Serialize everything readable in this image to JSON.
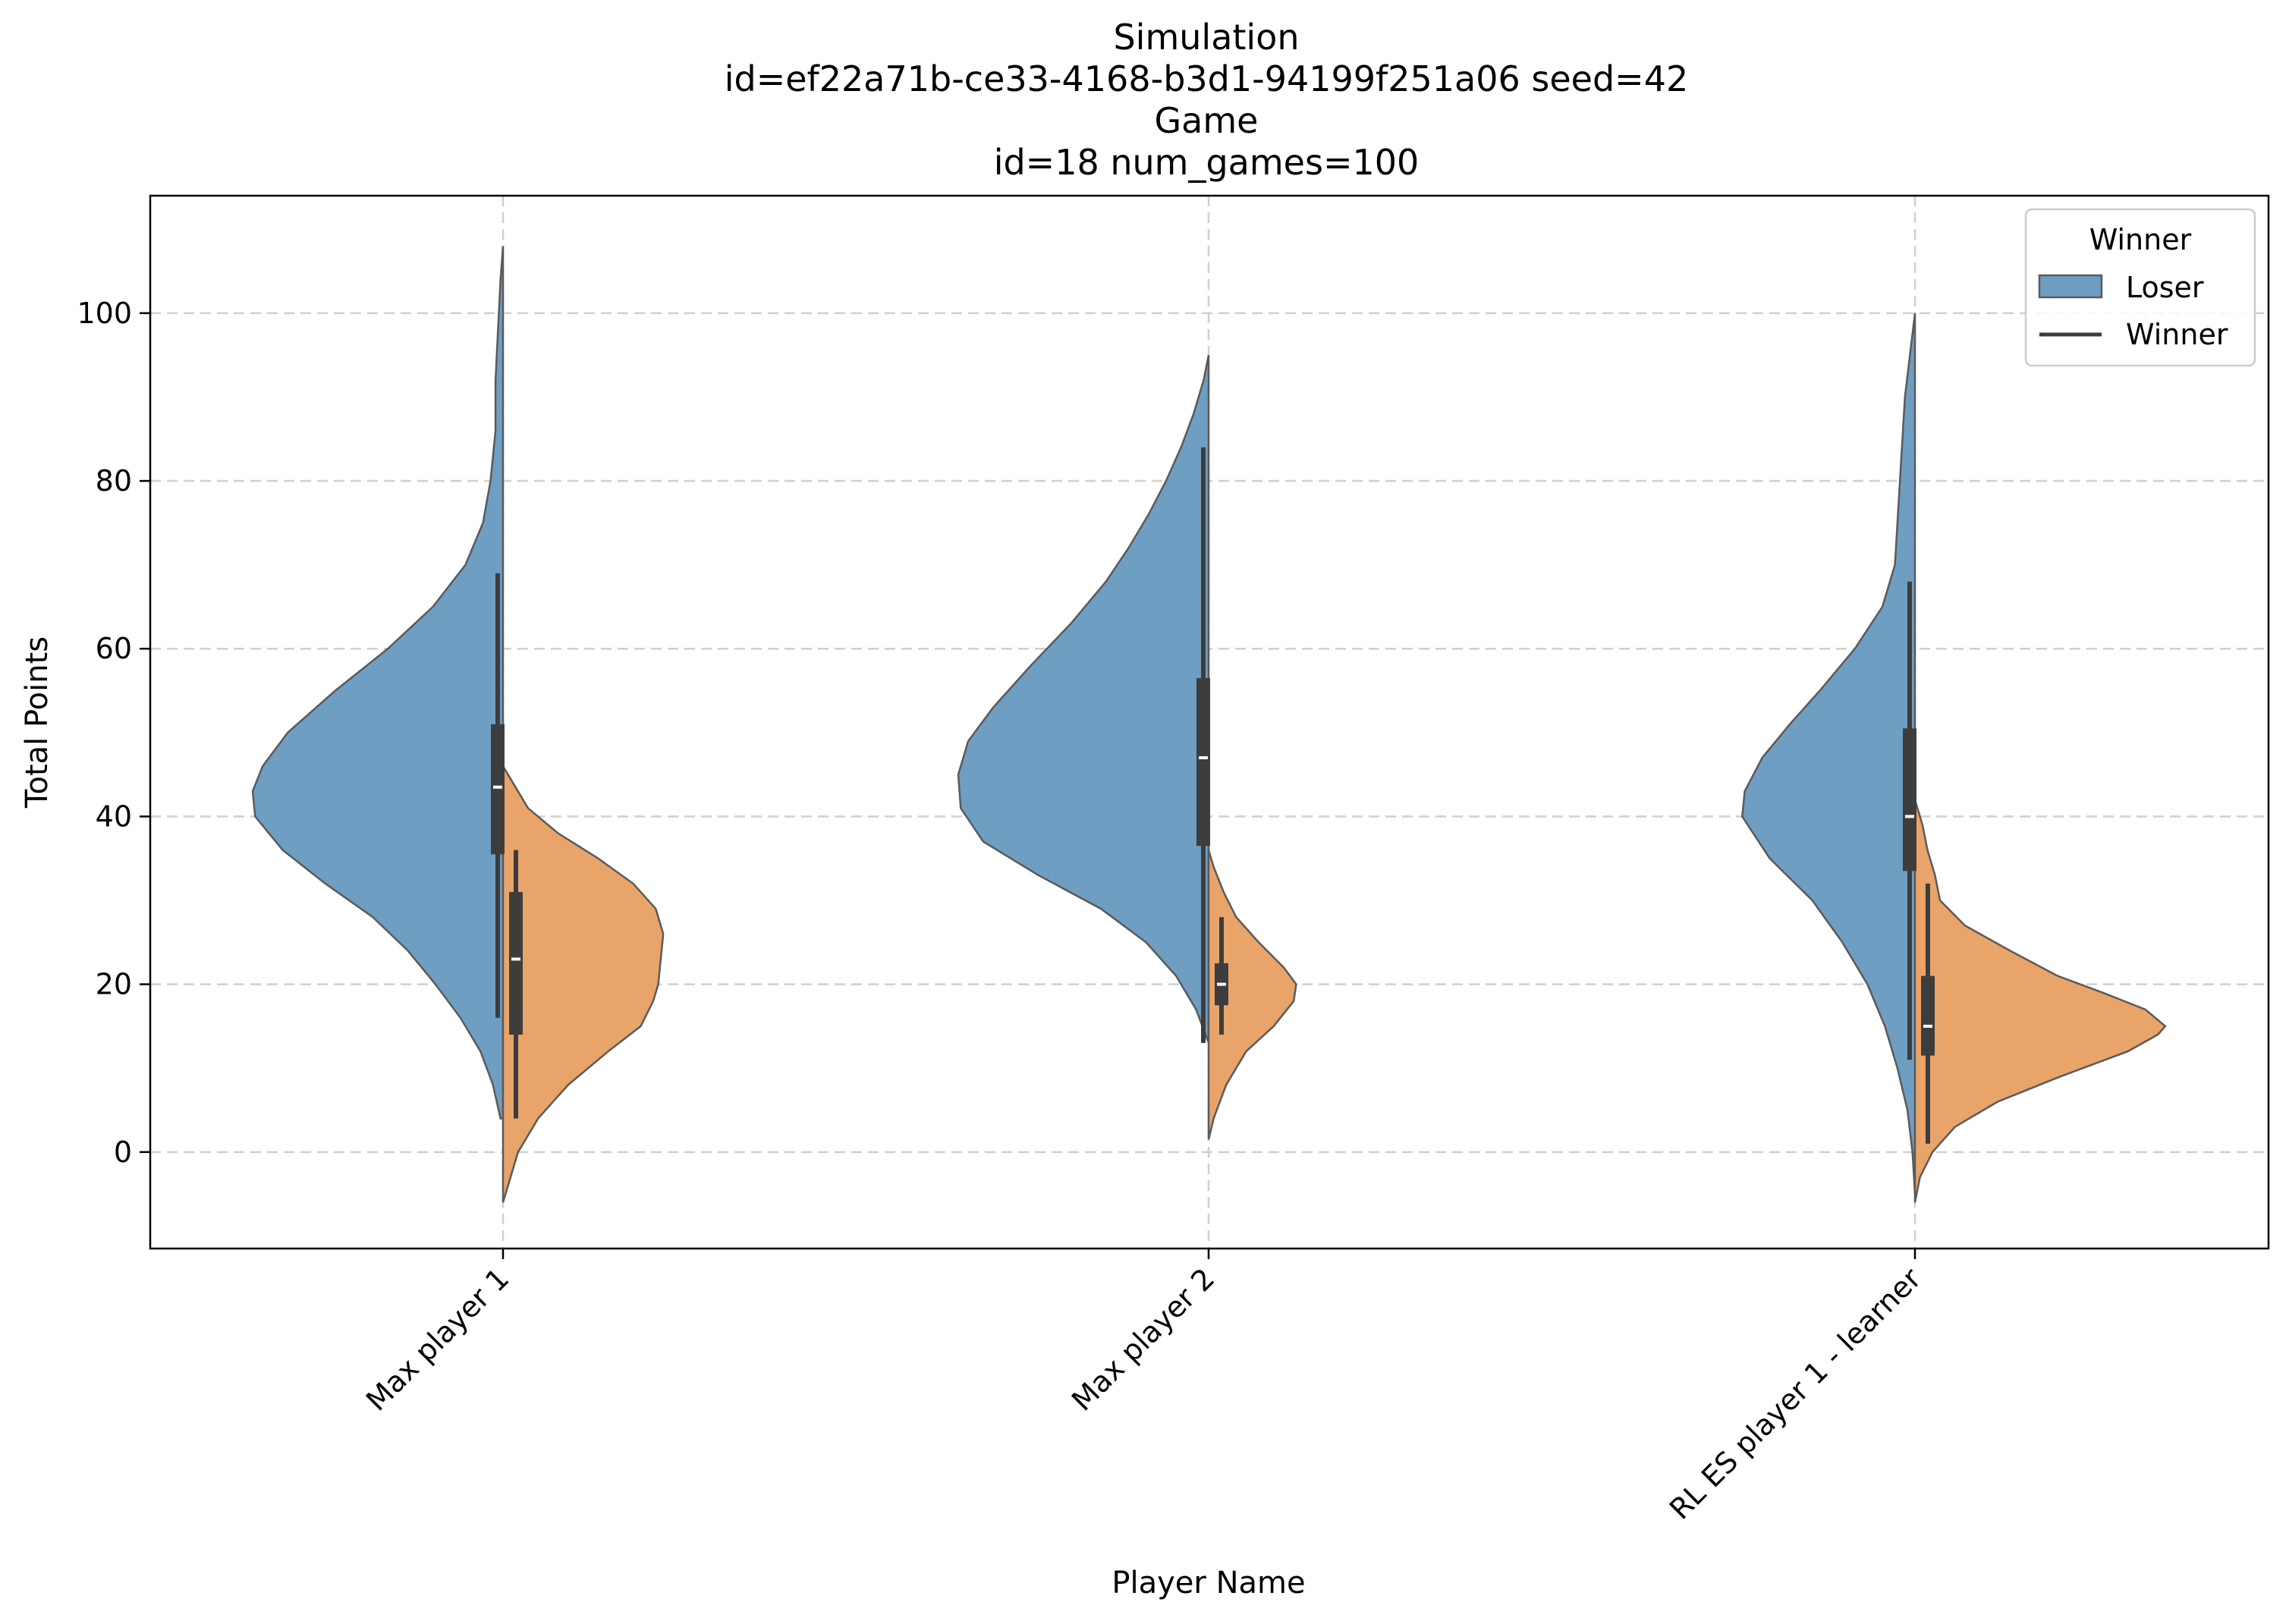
{
  "chart_data": {
    "type": "violin",
    "title_lines": [
      "Simulation",
      "id=ef22a71b-ce33-4168-b3d1-94199f251a06 seed=42",
      "Game",
      "id=18 num_games=100"
    ],
    "xlabel": "Player Name",
    "ylabel": "Total Points",
    "ylim": [
      -11.5,
      114
    ],
    "yticks": [
      0,
      20,
      40,
      60,
      80,
      100
    ],
    "grid": true,
    "categories": [
      "Max player 1",
      "Max player 2",
      "RL ES player 1 - learner"
    ],
    "legend": {
      "title": "Winner",
      "placement": "top-right",
      "entries": [
        "Loser",
        "Winner"
      ]
    },
    "colors": {
      "Loser": "#6f9ec3",
      "Winner": "#e9a46a",
      "outline": "#5a5a5a",
      "box": "#3d3d3d",
      "median": "#ffffff"
    },
    "series": [
      {
        "name": "Loser",
        "side": "left",
        "violins": [
          {
            "category": "Max player 1",
            "density": [
              [
                4,
                0.01
              ],
              [
                8,
                0.04
              ],
              [
                12,
                0.09
              ],
              [
                16,
                0.17
              ],
              [
                20,
                0.27
              ],
              [
                24,
                0.38
              ],
              [
                28,
                0.52
              ],
              [
                32,
                0.71
              ],
              [
                36,
                0.88
              ],
              [
                40,
                0.99
              ],
              [
                43,
                1.0
              ],
              [
                46,
                0.96
              ],
              [
                50,
                0.86
              ],
              [
                55,
                0.67
              ],
              [
                60,
                0.46
              ],
              [
                65,
                0.28
              ],
              [
                70,
                0.15
              ],
              [
                75,
                0.08
              ],
              [
                80,
                0.05
              ],
              [
                86,
                0.03
              ],
              [
                92,
                0.03
              ],
              [
                98,
                0.02
              ],
              [
                104,
                0.01
              ],
              [
                108,
                0.0
              ]
            ],
            "box": {
              "q1": 35.5,
              "median": 43.5,
              "q3": 51,
              "whisker_low": 16,
              "whisker_high": 69
            }
          },
          {
            "category": "Max player 2",
            "density": [
              [
                13,
                0.0
              ],
              [
                17,
                0.05
              ],
              [
                21,
                0.13
              ],
              [
                25,
                0.25
              ],
              [
                29,
                0.43
              ],
              [
                33,
                0.68
              ],
              [
                37,
                0.9
              ],
              [
                41,
                0.99
              ],
              [
                45,
                1.0
              ],
              [
                49,
                0.96
              ],
              [
                53,
                0.86
              ],
              [
                58,
                0.71
              ],
              [
                63,
                0.55
              ],
              [
                68,
                0.41
              ],
              [
                72,
                0.32
              ],
              [
                76,
                0.24
              ],
              [
                80,
                0.17
              ],
              [
                84,
                0.11
              ],
              [
                88,
                0.06
              ],
              [
                92,
                0.02
              ],
              [
                95,
                0.0
              ]
            ],
            "box": {
              "q1": 36.5,
              "median": 47,
              "q3": 56.5,
              "whisker_low": 13,
              "whisker_high": 84
            }
          },
          {
            "category": "RL ES player 1 - learner",
            "density": [
              [
                -5,
                0.0
              ],
              [
                0,
                0.01
              ],
              [
                5,
                0.03
              ],
              [
                10,
                0.07
              ],
              [
                15,
                0.12
              ],
              [
                20,
                0.19
              ],
              [
                25,
                0.29
              ],
              [
                30,
                0.41
              ],
              [
                35,
                0.58
              ],
              [
                40,
                0.69
              ],
              [
                43,
                0.68
              ],
              [
                47,
                0.61
              ],
              [
                51,
                0.5
              ],
              [
                55,
                0.38
              ],
              [
                60,
                0.24
              ],
              [
                65,
                0.13
              ],
              [
                70,
                0.08
              ],
              [
                75,
                0.07
              ],
              [
                80,
                0.06
              ],
              [
                85,
                0.05
              ],
              [
                90,
                0.04
              ],
              [
                95,
                0.02
              ],
              [
                100,
                0.0
              ]
            ],
            "box": {
              "q1": 33.5,
              "median": 40,
              "q3": 50.5,
              "whisker_low": 11,
              "whisker_high": 68
            }
          }
        ]
      },
      {
        "name": "Winner",
        "side": "right",
        "violins": [
          {
            "category": "Max player 1",
            "density": [
              [
                -6,
                0.0
              ],
              [
                -3,
                0.03
              ],
              [
                0,
                0.06
              ],
              [
                4,
                0.14
              ],
              [
                8,
                0.26
              ],
              [
                12,
                0.42
              ],
              [
                15,
                0.55
              ],
              [
                18,
                0.6
              ],
              [
                20,
                0.62
              ],
              [
                23,
                0.63
              ],
              [
                26,
                0.64
              ],
              [
                29,
                0.61
              ],
              [
                32,
                0.52
              ],
              [
                35,
                0.38
              ],
              [
                38,
                0.22
              ],
              [
                41,
                0.1
              ],
              [
                44,
                0.04
              ],
              [
                46,
                0.0
              ]
            ],
            "box": {
              "q1": 14,
              "median": 23,
              "q3": 31,
              "whisker_low": 4,
              "whisker_high": 36
            }
          },
          {
            "category": "Max player 2",
            "density": [
              [
                1.5,
                0.0
              ],
              [
                4,
                0.02
              ],
              [
                8,
                0.07
              ],
              [
                12,
                0.15
              ],
              [
                15,
                0.26
              ],
              [
                18,
                0.34
              ],
              [
                20,
                0.35
              ],
              [
                22,
                0.3
              ],
              [
                25,
                0.2
              ],
              [
                28,
                0.11
              ],
              [
                31,
                0.06
              ],
              [
                34,
                0.02
              ],
              [
                36,
                0.0
              ]
            ],
            "box": {
              "q1": 17.5,
              "median": 20,
              "q3": 22.5,
              "whisker_low": 14,
              "whisker_high": 28
            }
          },
          {
            "category": "RL ES player 1 - learner",
            "density": [
              [
                -6,
                0.0
              ],
              [
                -3,
                0.02
              ],
              [
                0,
                0.07
              ],
              [
                3,
                0.16
              ],
              [
                6,
                0.33
              ],
              [
                9,
                0.58
              ],
              [
                12,
                0.85
              ],
              [
                14,
                0.97
              ],
              [
                15,
                1.0
              ],
              [
                17,
                0.92
              ],
              [
                19,
                0.75
              ],
              [
                21,
                0.57
              ],
              [
                24,
                0.38
              ],
              [
                27,
                0.2
              ],
              [
                30,
                0.1
              ],
              [
                33,
                0.08
              ],
              [
                36,
                0.05
              ],
              [
                39,
                0.03
              ],
              [
                42,
                0.0
              ]
            ],
            "box": {
              "q1": 11.5,
              "median": 15,
              "q3": 21,
              "whisker_low": 1,
              "whisker_high": 32
            }
          }
        ]
      }
    ]
  }
}
